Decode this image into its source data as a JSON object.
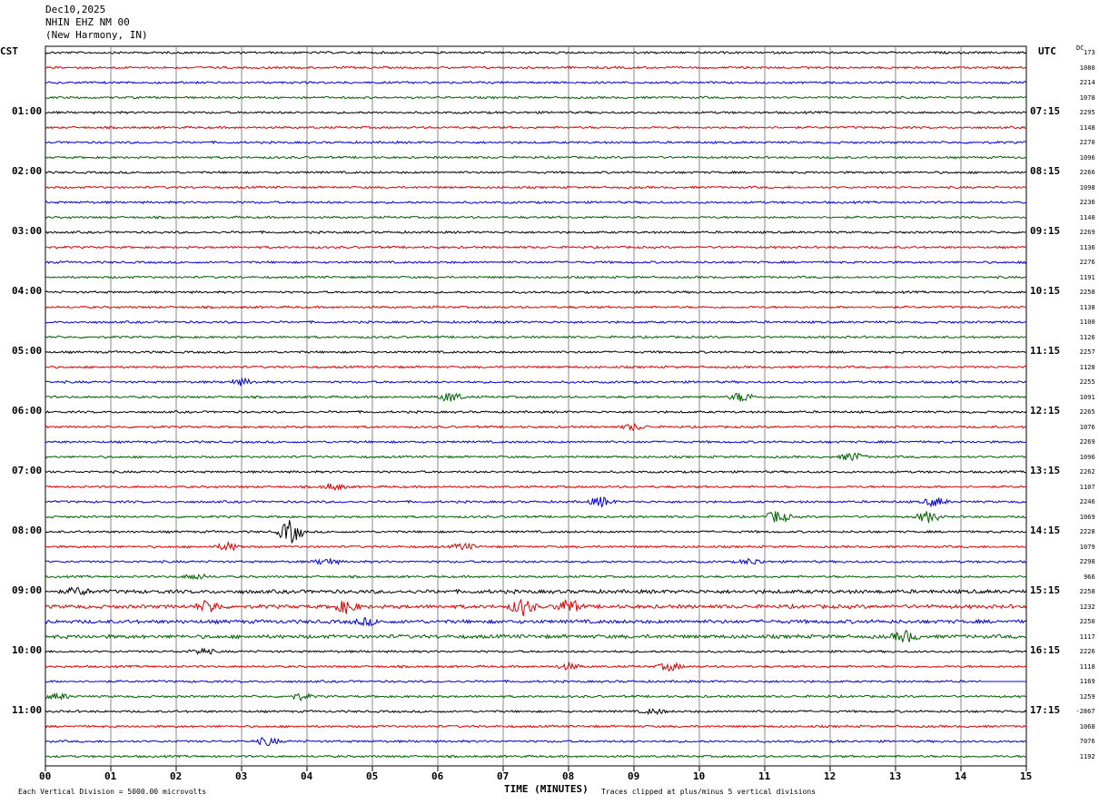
{
  "header": {
    "date": "Dec10,2025",
    "station": "NHIN EHZ NM 00",
    "location": "(New Harmony, IN)"
  },
  "labels": {
    "left_tz": "CST",
    "right_tz": "UTC",
    "dc": "DC",
    "xlabel": "TIME (MINUTES)",
    "footer_left": "Each Vertical Division = 5000.00 microvolts",
    "footer_right": "Traces clipped at plus/minus 5 vertical divisions"
  },
  "chart_data": {
    "type": "line",
    "title": "",
    "xlabel": "TIME (MINUTES)",
    "xlim": [
      0,
      15
    ],
    "x_ticks": [
      "00",
      "01",
      "02",
      "03",
      "04",
      "05",
      "06",
      "07",
      "08",
      "09",
      "10",
      "11",
      "12",
      "13",
      "14",
      "15"
    ],
    "left_time_labels": [
      "01:00",
      "02:00",
      "03:00",
      "04:00",
      "05:00",
      "06:00",
      "07:00",
      "08:00",
      "09:00",
      "10:00",
      "11:00"
    ],
    "right_time_labels": [
      "07:15",
      "08:15",
      "09:15",
      "10:15",
      "11:15",
      "12:15",
      "13:15",
      "14:15",
      "15:15",
      "16:15",
      "17:15"
    ],
    "trace_colors": [
      "#000000",
      "#e00000",
      "#0000dd",
      "#006000"
    ],
    "row_count": 48,
    "dc_offsets": [
      "173",
      "1080",
      "2214",
      "1078",
      "2295",
      "1148",
      "2270",
      "1096",
      "2266",
      "1098",
      "2236",
      "1140",
      "2269",
      "1136",
      "2276",
      "1191",
      "2258",
      "1138",
      "1100",
      "1126",
      "2257",
      "1128",
      "2255",
      "1091",
      "2265",
      "1076",
      "2269",
      "1096",
      "2262",
      "1107",
      "2246",
      "1069",
      "2228",
      "1079",
      "2298",
      "966",
      "2258",
      "1232",
      "2250",
      "1117",
      "2226",
      "1118",
      "1169",
      "1259",
      "-2867",
      "1068",
      "7076",
      "1192"
    ],
    "events": [
      {
        "row": 22,
        "minute": 3.0,
        "amp": 1.5
      },
      {
        "row": 23,
        "minute": 6.2,
        "amp": 2.5
      },
      {
        "row": 23,
        "minute": 10.65,
        "amp": 2.5
      },
      {
        "row": 25,
        "minute": 9.0,
        "amp": 1.5
      },
      {
        "row": 27,
        "minute": 12.35,
        "amp": 2.2
      },
      {
        "row": 29,
        "minute": 4.4,
        "amp": 1.5
      },
      {
        "row": 30,
        "minute": 8.5,
        "amp": 2.5
      },
      {
        "row": 30,
        "minute": 13.6,
        "amp": 2.2
      },
      {
        "row": 31,
        "minute": 11.2,
        "amp": 3.2
      },
      {
        "row": 31,
        "minute": 13.5,
        "amp": 2.8
      },
      {
        "row": 32,
        "minute": 3.75,
        "amp": 6.0
      },
      {
        "row": 33,
        "minute": 2.8,
        "amp": 2.0
      },
      {
        "row": 33,
        "minute": 6.4,
        "amp": 1.5
      },
      {
        "row": 34,
        "minute": 4.3,
        "amp": 1.8
      },
      {
        "row": 34,
        "minute": 10.8,
        "amp": 1.5
      },
      {
        "row": 35,
        "minute": 2.3,
        "amp": 1.4
      },
      {
        "row": 36,
        "minute": 0.5,
        "amp": 1.8
      },
      {
        "row": 37,
        "minute": 2.5,
        "amp": 3.0
      },
      {
        "row": 37,
        "minute": 4.6,
        "amp": 3.0
      },
      {
        "row": 37,
        "minute": 7.3,
        "amp": 4.2
      },
      {
        "row": 37,
        "minute": 8.0,
        "amp": 3.6
      },
      {
        "row": 38,
        "minute": 4.9,
        "amp": 1.5
      },
      {
        "row": 39,
        "minute": 13.15,
        "amp": 2.8
      },
      {
        "row": 40,
        "minute": 2.4,
        "amp": 1.5
      },
      {
        "row": 41,
        "minute": 9.55,
        "amp": 2.0
      },
      {
        "row": 41,
        "minute": 8.0,
        "amp": 1.5
      },
      {
        "row": 43,
        "minute": 0.2,
        "amp": 1.5
      },
      {
        "row": 43,
        "minute": 3.9,
        "amp": 1.5
      },
      {
        "row": 44,
        "minute": 9.3,
        "amp": 1.3
      },
      {
        "row": 46,
        "minute": 3.4,
        "amp": 2.0
      }
    ],
    "noisy_rows": [
      36,
      37,
      38,
      39
    ],
    "flat_tail": {
      "row": 42,
      "from_minute": 14.3
    }
  }
}
